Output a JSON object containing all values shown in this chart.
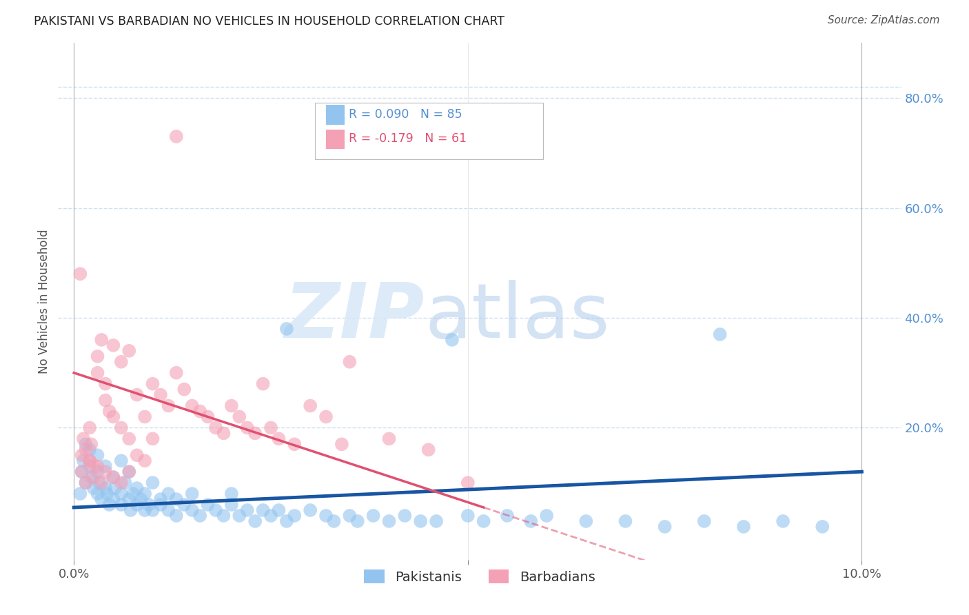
{
  "title": "PAKISTANI VS BARBADIAN NO VEHICLES IN HOUSEHOLD CORRELATION CHART",
  "source": "Source: ZipAtlas.com",
  "ylabel": "No Vehicles in Household",
  "right_yticks": [
    "80.0%",
    "60.0%",
    "40.0%",
    "20.0%"
  ],
  "right_ytick_vals": [
    0.8,
    0.6,
    0.4,
    0.2
  ],
  "xlim_min": -0.002,
  "xlim_max": 0.105,
  "ylim_min": -0.04,
  "ylim_max": 0.9,
  "pakistani_R": 0.09,
  "pakistani_N": 85,
  "barbadian_R": -0.179,
  "barbadian_N": 61,
  "pakistani_color": "#93c4f0",
  "barbadian_color": "#f4a0b5",
  "pakistani_line_color": "#1855a3",
  "barbadian_line_color": "#e05070",
  "grid_color": "#d0dff0",
  "pak_x": [
    0.0008,
    0.001,
    0.0012,
    0.0015,
    0.002,
    0.002,
    0.0022,
    0.0025,
    0.003,
    0.003,
    0.0032,
    0.0035,
    0.004,
    0.004,
    0.0042,
    0.0045,
    0.005,
    0.005,
    0.0052,
    0.006,
    0.006,
    0.006,
    0.0065,
    0.007,
    0.007,
    0.0072,
    0.0075,
    0.008,
    0.008,
    0.0085,
    0.009,
    0.009,
    0.0095,
    0.01,
    0.01,
    0.011,
    0.011,
    0.012,
    0.012,
    0.013,
    0.013,
    0.014,
    0.015,
    0.015,
    0.016,
    0.017,
    0.018,
    0.019,
    0.02,
    0.02,
    0.021,
    0.022,
    0.023,
    0.024,
    0.025,
    0.026,
    0.027,
    0.028,
    0.03,
    0.032,
    0.033,
    0.035,
    0.036,
    0.038,
    0.04,
    0.042,
    0.044,
    0.046,
    0.05,
    0.052,
    0.055,
    0.058,
    0.06,
    0.065,
    0.07,
    0.075,
    0.08,
    0.085,
    0.09,
    0.095,
    0.027,
    0.048,
    0.082,
    0.0015,
    0.003
  ],
  "pak_y": [
    0.08,
    0.12,
    0.14,
    0.1,
    0.16,
    0.13,
    0.11,
    0.09,
    0.12,
    0.08,
    0.1,
    0.07,
    0.09,
    0.13,
    0.08,
    0.06,
    0.11,
    0.07,
    0.09,
    0.14,
    0.08,
    0.06,
    0.1,
    0.07,
    0.12,
    0.05,
    0.08,
    0.06,
    0.09,
    0.07,
    0.05,
    0.08,
    0.06,
    0.1,
    0.05,
    0.07,
    0.06,
    0.08,
    0.05,
    0.07,
    0.04,
    0.06,
    0.05,
    0.08,
    0.04,
    0.06,
    0.05,
    0.04,
    0.06,
    0.08,
    0.04,
    0.05,
    0.03,
    0.05,
    0.04,
    0.05,
    0.03,
    0.04,
    0.05,
    0.04,
    0.03,
    0.04,
    0.03,
    0.04,
    0.03,
    0.04,
    0.03,
    0.03,
    0.04,
    0.03,
    0.04,
    0.03,
    0.04,
    0.03,
    0.03,
    0.02,
    0.03,
    0.02,
    0.03,
    0.02,
    0.38,
    0.36,
    0.37,
    0.17,
    0.15
  ],
  "bar_x": [
    0.0008,
    0.001,
    0.0012,
    0.0015,
    0.002,
    0.002,
    0.0022,
    0.0025,
    0.003,
    0.003,
    0.0035,
    0.004,
    0.004,
    0.0045,
    0.005,
    0.005,
    0.006,
    0.006,
    0.007,
    0.007,
    0.008,
    0.008,
    0.009,
    0.009,
    0.01,
    0.01,
    0.011,
    0.012,
    0.013,
    0.014,
    0.015,
    0.016,
    0.017,
    0.018,
    0.019,
    0.02,
    0.021,
    0.022,
    0.023,
    0.024,
    0.025,
    0.026,
    0.028,
    0.03,
    0.032,
    0.034,
    0.035,
    0.04,
    0.045,
    0.05,
    0.001,
    0.0015,
    0.002,
    0.0025,
    0.003,
    0.0035,
    0.004,
    0.005,
    0.006,
    0.007,
    0.013
  ],
  "bar_y": [
    0.48,
    0.15,
    0.18,
    0.16,
    0.2,
    0.14,
    0.17,
    0.13,
    0.33,
    0.3,
    0.36,
    0.28,
    0.25,
    0.23,
    0.35,
    0.22,
    0.32,
    0.2,
    0.34,
    0.18,
    0.26,
    0.15,
    0.22,
    0.14,
    0.28,
    0.18,
    0.26,
    0.24,
    0.3,
    0.27,
    0.24,
    0.23,
    0.22,
    0.2,
    0.19,
    0.24,
    0.22,
    0.2,
    0.19,
    0.28,
    0.2,
    0.18,
    0.17,
    0.24,
    0.22,
    0.17,
    0.32,
    0.18,
    0.16,
    0.1,
    0.12,
    0.1,
    0.14,
    0.11,
    0.13,
    0.1,
    0.12,
    0.11,
    0.1,
    0.12,
    0.73
  ]
}
